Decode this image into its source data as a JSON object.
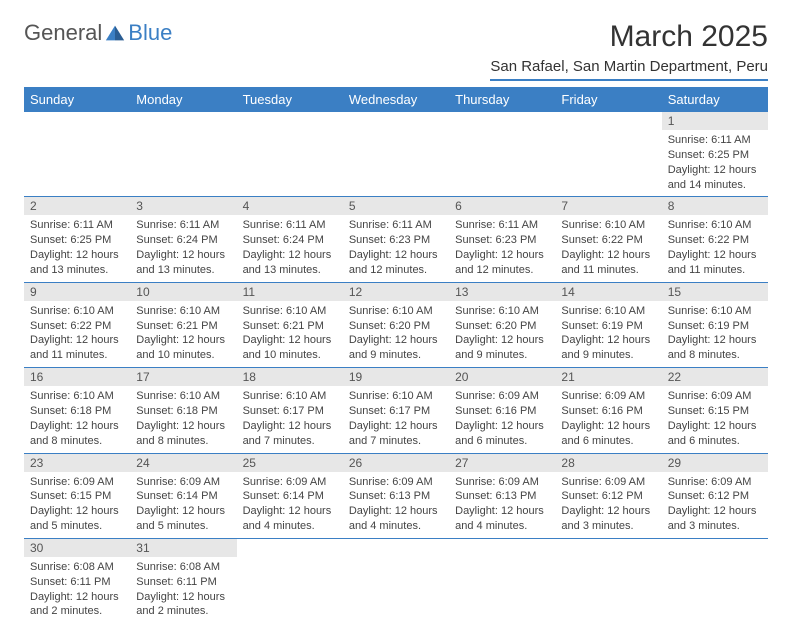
{
  "logo": {
    "text1": "General",
    "text2": "Blue"
  },
  "header": {
    "month_title": "March 2025",
    "location": "San Rafael, San Martin Department, Peru"
  },
  "colors": {
    "brand": "#3b7fc4",
    "header_bg": "#3b7fc4",
    "header_text": "#ffffff",
    "daynum_bg": "#e7e7e7",
    "border": "#3b7fc4"
  },
  "day_names": [
    "Sunday",
    "Monday",
    "Tuesday",
    "Wednesday",
    "Thursday",
    "Friday",
    "Saturday"
  ],
  "weeks": [
    [
      null,
      null,
      null,
      null,
      null,
      null,
      {
        "n": "1",
        "sunrise": "6:11 AM",
        "sunset": "6:25 PM",
        "dl": "12 hours and 14 minutes."
      }
    ],
    [
      {
        "n": "2",
        "sunrise": "6:11 AM",
        "sunset": "6:25 PM",
        "dl": "12 hours and 13 minutes."
      },
      {
        "n": "3",
        "sunrise": "6:11 AM",
        "sunset": "6:24 PM",
        "dl": "12 hours and 13 minutes."
      },
      {
        "n": "4",
        "sunrise": "6:11 AM",
        "sunset": "6:24 PM",
        "dl": "12 hours and 13 minutes."
      },
      {
        "n": "5",
        "sunrise": "6:11 AM",
        "sunset": "6:23 PM",
        "dl": "12 hours and 12 minutes."
      },
      {
        "n": "6",
        "sunrise": "6:11 AM",
        "sunset": "6:23 PM",
        "dl": "12 hours and 12 minutes."
      },
      {
        "n": "7",
        "sunrise": "6:10 AM",
        "sunset": "6:22 PM",
        "dl": "12 hours and 11 minutes."
      },
      {
        "n": "8",
        "sunrise": "6:10 AM",
        "sunset": "6:22 PM",
        "dl": "12 hours and 11 minutes."
      }
    ],
    [
      {
        "n": "9",
        "sunrise": "6:10 AM",
        "sunset": "6:22 PM",
        "dl": "12 hours and 11 minutes."
      },
      {
        "n": "10",
        "sunrise": "6:10 AM",
        "sunset": "6:21 PM",
        "dl": "12 hours and 10 minutes."
      },
      {
        "n": "11",
        "sunrise": "6:10 AM",
        "sunset": "6:21 PM",
        "dl": "12 hours and 10 minutes."
      },
      {
        "n": "12",
        "sunrise": "6:10 AM",
        "sunset": "6:20 PM",
        "dl": "12 hours and 9 minutes."
      },
      {
        "n": "13",
        "sunrise": "6:10 AM",
        "sunset": "6:20 PM",
        "dl": "12 hours and 9 minutes."
      },
      {
        "n": "14",
        "sunrise": "6:10 AM",
        "sunset": "6:19 PM",
        "dl": "12 hours and 9 minutes."
      },
      {
        "n": "15",
        "sunrise": "6:10 AM",
        "sunset": "6:19 PM",
        "dl": "12 hours and 8 minutes."
      }
    ],
    [
      {
        "n": "16",
        "sunrise": "6:10 AM",
        "sunset": "6:18 PM",
        "dl": "12 hours and 8 minutes."
      },
      {
        "n": "17",
        "sunrise": "6:10 AM",
        "sunset": "6:18 PM",
        "dl": "12 hours and 8 minutes."
      },
      {
        "n": "18",
        "sunrise": "6:10 AM",
        "sunset": "6:17 PM",
        "dl": "12 hours and 7 minutes."
      },
      {
        "n": "19",
        "sunrise": "6:10 AM",
        "sunset": "6:17 PM",
        "dl": "12 hours and 7 minutes."
      },
      {
        "n": "20",
        "sunrise": "6:09 AM",
        "sunset": "6:16 PM",
        "dl": "12 hours and 6 minutes."
      },
      {
        "n": "21",
        "sunrise": "6:09 AM",
        "sunset": "6:16 PM",
        "dl": "12 hours and 6 minutes."
      },
      {
        "n": "22",
        "sunrise": "6:09 AM",
        "sunset": "6:15 PM",
        "dl": "12 hours and 6 minutes."
      }
    ],
    [
      {
        "n": "23",
        "sunrise": "6:09 AM",
        "sunset": "6:15 PM",
        "dl": "12 hours and 5 minutes."
      },
      {
        "n": "24",
        "sunrise": "6:09 AM",
        "sunset": "6:14 PM",
        "dl": "12 hours and 5 minutes."
      },
      {
        "n": "25",
        "sunrise": "6:09 AM",
        "sunset": "6:14 PM",
        "dl": "12 hours and 4 minutes."
      },
      {
        "n": "26",
        "sunrise": "6:09 AM",
        "sunset": "6:13 PM",
        "dl": "12 hours and 4 minutes."
      },
      {
        "n": "27",
        "sunrise": "6:09 AM",
        "sunset": "6:13 PM",
        "dl": "12 hours and 4 minutes."
      },
      {
        "n": "28",
        "sunrise": "6:09 AM",
        "sunset": "6:12 PM",
        "dl": "12 hours and 3 minutes."
      },
      {
        "n": "29",
        "sunrise": "6:09 AM",
        "sunset": "6:12 PM",
        "dl": "12 hours and 3 minutes."
      }
    ],
    [
      {
        "n": "30",
        "sunrise": "6:08 AM",
        "sunset": "6:11 PM",
        "dl": "12 hours and 2 minutes."
      },
      {
        "n": "31",
        "sunrise": "6:08 AM",
        "sunset": "6:11 PM",
        "dl": "12 hours and 2 minutes."
      },
      null,
      null,
      null,
      null,
      null
    ]
  ],
  "labels": {
    "sunrise": "Sunrise:",
    "sunset": "Sunset:",
    "daylight": "Daylight:"
  }
}
